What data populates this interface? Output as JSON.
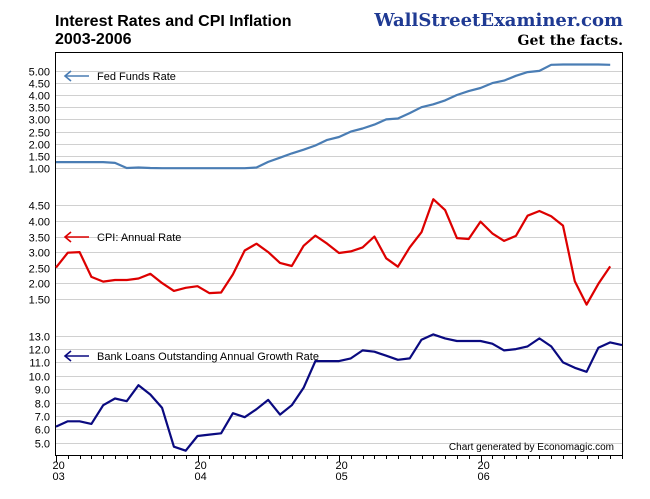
{
  "header": {
    "title_line1": "Interest Rates and CPI Inflation",
    "title_line2": "2003-2006",
    "brand": "WallStreetExaminer.com",
    "tagline": "Get the facts.",
    "credit": "Chart generated by Economagic.com"
  },
  "colors": {
    "fed": "#4a7db4",
    "cpi": "#dd0000",
    "loans": "#0a0a80",
    "brand": "#1f3a93"
  },
  "chart_data": [
    {
      "type": "line",
      "title": "Fed Funds Rate",
      "legend": "Fed Funds Rate",
      "color": "#4a7db4",
      "ylim": [
        0.6,
        5.6
      ],
      "yticks": [
        "5.00",
        "4.50",
        "4.00",
        "3.50",
        "3.00",
        "2.50",
        "2.00",
        "1.50",
        "1.00"
      ],
      "x_start": 2003.0,
      "x_step": 0.08333,
      "values": [
        1.25,
        1.25,
        1.25,
        1.25,
        1.25,
        1.22,
        1.01,
        1.03,
        1.01,
        1.0,
        1.0,
        1.0,
        1.0,
        1.0,
        1.0,
        1.0,
        1.0,
        1.03,
        1.26,
        1.43,
        1.61,
        1.76,
        1.93,
        2.16,
        2.28,
        2.5,
        2.63,
        2.79,
        3.0,
        3.04,
        3.26,
        3.5,
        3.62,
        3.78,
        4.0,
        4.16,
        4.29,
        4.49,
        4.59,
        4.79,
        4.94,
        4.99,
        5.24,
        5.25,
        5.25,
        5.25,
        5.25,
        5.24
      ]
    },
    {
      "type": "line",
      "title": "CPI: Annual Rate",
      "legend": "CPI: Annual Rate",
      "color": "#dd0000",
      "ylim": [
        1.2,
        4.9
      ],
      "yticks": [
        "4.50",
        "4.00",
        "3.50",
        "3.00",
        "2.50",
        "2.00",
        "1.50"
      ],
      "x_start": 2003.0,
      "x_step": 0.08333,
      "values": [
        2.5,
        2.98,
        3.0,
        2.2,
        2.05,
        2.1,
        2.1,
        2.15,
        2.3,
        2.0,
        1.75,
        1.85,
        1.9,
        1.68,
        1.7,
        2.28,
        3.05,
        3.27,
        3.0,
        2.65,
        2.55,
        3.2,
        3.53,
        3.27,
        2.97,
        3.02,
        3.15,
        3.5,
        2.8,
        2.53,
        3.15,
        3.64,
        4.7,
        4.35,
        3.45,
        3.42,
        3.98,
        3.6,
        3.36,
        3.52,
        4.17,
        4.32,
        4.15,
        3.85,
        2.06,
        1.31,
        1.98,
        2.54
      ]
    },
    {
      "type": "line",
      "title": "Bank Loans Outstanding Annual Growth Rate",
      "legend": "Bank Loans Outstanding Annual Growth Rate",
      "color": "#0a0a80",
      "ylim": [
        4.3,
        13.8
      ],
      "yticks": [
        "13.0",
        "12.0",
        "11.0",
        "10.0",
        "9.0",
        "8.0",
        "7.0",
        "6.0",
        "5.0"
      ],
      "x_start": 2003.0,
      "x_step": 0.08333,
      "values": [
        6.2,
        6.6,
        6.6,
        6.4,
        7.8,
        8.3,
        8.1,
        9.3,
        8.6,
        7.6,
        4.7,
        4.4,
        5.5,
        5.6,
        5.7,
        7.2,
        6.9,
        7.5,
        8.2,
        7.1,
        7.8,
        9.1,
        11.1,
        11.1,
        11.1,
        11.3,
        11.9,
        11.8,
        11.5,
        11.2,
        11.3,
        12.7,
        13.1,
        12.8,
        12.6,
        12.6,
        12.6,
        12.4,
        11.9,
        12.0,
        12.2,
        12.8,
        12.2,
        11.0,
        10.6,
        10.3,
        12.1,
        12.5,
        12.3
      ]
    }
  ],
  "x_axis": {
    "xlim": [
      2003.0,
      2007.0
    ],
    "ticks": [
      {
        "value": 2003.0,
        "year": "20",
        "suffix": "03"
      },
      {
        "value": 2004.0,
        "year": "20",
        "suffix": "04"
      },
      {
        "value": 2005.0,
        "year": "20",
        "suffix": "05"
      },
      {
        "value": 2006.0,
        "year": "20",
        "suffix": "06"
      }
    ]
  }
}
